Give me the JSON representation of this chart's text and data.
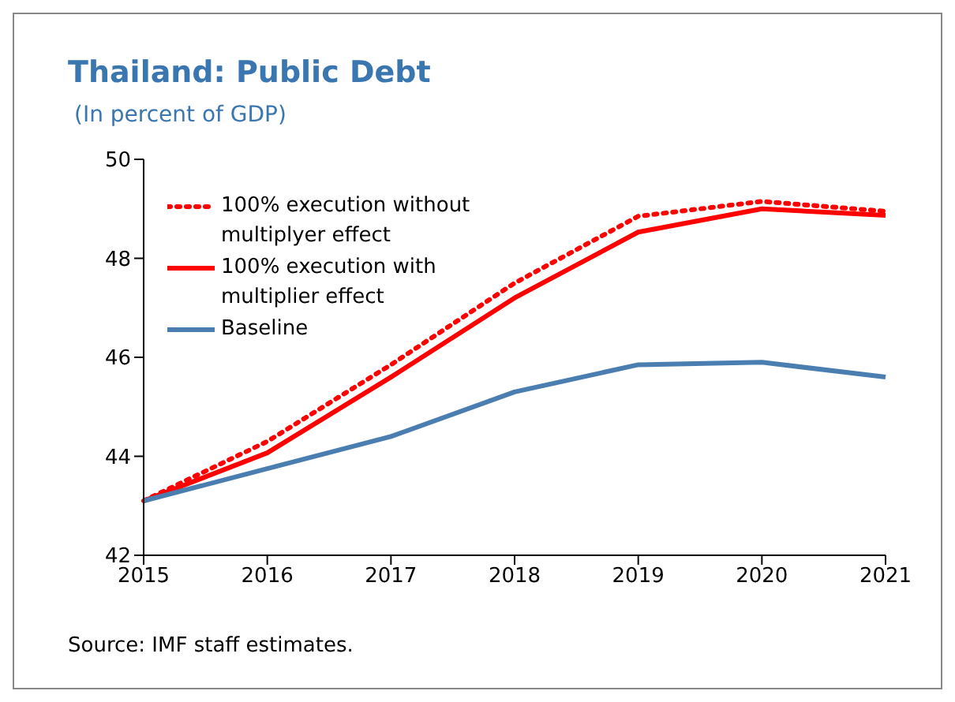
{
  "chart_data": {
    "type": "line",
    "title": "Thailand: Public Debt",
    "subtitle": "(In percent of GDP)",
    "categories": [
      "2015",
      "2016",
      "2017",
      "2018",
      "2019",
      "2020",
      "2021"
    ],
    "series": [
      {
        "name": "100% execution without multiplyer effect",
        "color": "#ff0000",
        "line_style": "dotted",
        "values": [
          43.1,
          44.3,
          45.85,
          47.5,
          48.85,
          49.15,
          48.95
        ]
      },
      {
        "name": "100% execution with multiplier effect",
        "color": "#ff0000",
        "line_style": "solid",
        "values": [
          43.1,
          44.07,
          45.6,
          47.2,
          48.53,
          49.0,
          48.87
        ]
      },
      {
        "name": "Baseline",
        "color": "#4a7eb0",
        "line_style": "solid",
        "values": [
          43.1,
          43.75,
          44.4,
          45.3,
          45.85,
          45.9,
          45.6
        ]
      }
    ],
    "ylim": [
      42,
      50
    ],
    "yticks": [
      42,
      44,
      46,
      48,
      50
    ],
    "grid": false,
    "legend": "top left",
    "marker": "none",
    "annotations": [
      "Source: IMF staff estimates."
    ]
  }
}
